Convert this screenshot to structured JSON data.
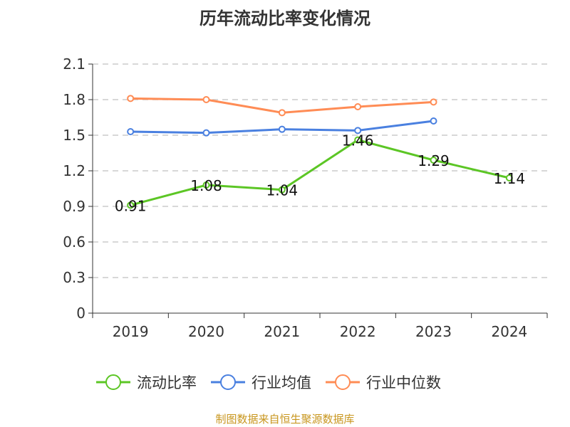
{
  "chart_data": {
    "type": "line",
    "title": "历年流动比率变化情况",
    "categories": [
      "2019",
      "2020",
      "2021",
      "2022",
      "2023",
      "2024"
    ],
    "ylim": [
      0,
      2.1
    ],
    "yticks": [
      "0",
      "0.3",
      "0.6",
      "0.9",
      "1.2",
      "1.5",
      "1.8",
      "2.1"
    ],
    "grid": true,
    "legend_position": "bottom",
    "series": [
      {
        "name": "流动比率",
        "color": "#5cc625",
        "values": [
          0.91,
          1.08,
          1.04,
          1.46,
          1.29,
          1.14
        ],
        "labels": [
          "0.91",
          "1.08",
          "1.04",
          "1.46",
          "1.29",
          "1.14"
        ]
      },
      {
        "name": "行业均值",
        "color": "#4a80e0",
        "values": [
          1.53,
          1.52,
          1.55,
          1.54,
          1.62,
          null
        ]
      },
      {
        "name": "行业中位数",
        "color": "#ff8c55",
        "values": [
          1.81,
          1.8,
          1.69,
          1.74,
          1.78,
          null
        ]
      }
    ]
  },
  "source": "制图数据来自恒生聚源数据库"
}
